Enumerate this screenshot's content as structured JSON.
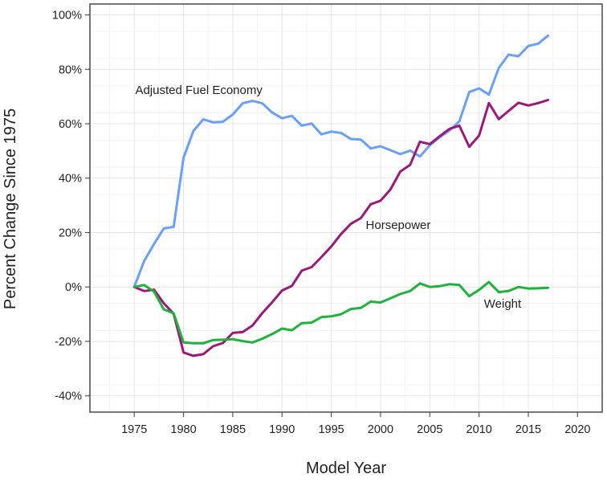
{
  "chart_data": {
    "type": "line",
    "xlabel": "Model Year",
    "ylabel": "Percent Change Since 1975",
    "xlim": [
      1970.5,
      2022.5
    ],
    "ylim": [
      -46,
      104
    ],
    "x_ticks": [
      1975,
      1980,
      1985,
      1990,
      1995,
      2000,
      2005,
      2010,
      2015,
      2020
    ],
    "x_tick_labels": [
      "1975",
      "1980",
      "1985",
      "1990",
      "1995",
      "2000",
      "2005",
      "2010",
      "2015",
      "2020"
    ],
    "y_ticks": [
      -40,
      -20,
      0,
      20,
      40,
      60,
      80,
      100
    ],
    "y_tick_labels": [
      "-40%",
      "-20%",
      "0%",
      "20%",
      "40%",
      "60%",
      "80%",
      "100%"
    ],
    "grid": true,
    "series": [
      {
        "name": "Adjusted Fuel Economy",
        "color": "#6a9eff",
        "x": [
          1975,
          1976,
          1977,
          1978,
          1979,
          1980,
          1981,
          1982,
          1983,
          1984,
          1985,
          1986,
          1987,
          1988,
          1989,
          1990,
          1991,
          1992,
          1993,
          1994,
          1995,
          1996,
          1997,
          1998,
          1999,
          2000,
          2001,
          2002,
          2003,
          2004,
          2005,
          2006,
          2007,
          2008,
          2009,
          2010,
          2011,
          2012,
          2013,
          2014,
          2015,
          2016,
          2017
        ],
        "values": [
          0,
          9.5,
          15.8,
          21.5,
          22.1,
          47.5,
          57.3,
          61.6,
          60.5,
          60.7,
          63.4,
          67.5,
          68.4,
          67.5,
          64.1,
          62,
          62.9,
          59.3,
          60.1,
          56.1,
          57.1,
          56.6,
          54.4,
          54.2,
          50.9,
          51.7,
          50.3,
          48.8,
          50.1,
          48,
          52.1,
          55,
          57.5,
          60.9,
          71.6,
          73,
          70.7,
          80.5,
          85.4,
          84.8,
          88.6,
          89.4,
          92.4
        ],
        "label_anchor": [
          1975.1,
          70.9
        ]
      },
      {
        "name": "Horsepower",
        "color": "#9c1879",
        "x": [
          1975,
          1976,
          1977,
          1978,
          1979,
          1980,
          1981,
          1982,
          1983,
          1984,
          1985,
          1986,
          1987,
          1988,
          1989,
          1990,
          1991,
          1992,
          1993,
          1994,
          1995,
          1996,
          1997,
          1998,
          1999,
          2000,
          2001,
          2002,
          2003,
          2004,
          2005,
          2006,
          2007,
          2008,
          2009,
          2010,
          2011,
          2012,
          2013,
          2014,
          2015,
          2016,
          2017
        ],
        "values": [
          0,
          -1.5,
          -1,
          -6,
          -9.9,
          -24.1,
          -25.3,
          -24.7,
          -21.8,
          -20.6,
          -16.9,
          -16.6,
          -14.2,
          -9.6,
          -5.6,
          -1.3,
          0.4,
          6,
          7.3,
          11,
          14.9,
          19.5,
          23.2,
          25.3,
          30.4,
          31.7,
          35.8,
          42.4,
          44.9,
          53.4,
          52.5,
          55.4,
          58.1,
          59.3,
          51.5,
          55.6,
          67.6,
          61.7,
          64.7,
          67.7,
          66.7,
          67.6,
          68.7
        ],
        "label_anchor": [
          1998.5,
          21.3
        ]
      },
      {
        "name": "Weight",
        "color": "#1fb23c",
        "x": [
          1975,
          1976,
          1977,
          1978,
          1979,
          1980,
          1981,
          1982,
          1983,
          1984,
          1985,
          1986,
          1987,
          1988,
          1989,
          1990,
          1991,
          1992,
          1993,
          1994,
          1995,
          1996,
          1997,
          1998,
          1999,
          2000,
          2001,
          2002,
          2003,
          2004,
          2005,
          2006,
          2007,
          2008,
          2009,
          2010,
          2011,
          2012,
          2013,
          2014,
          2015,
          2016,
          2017
        ],
        "values": [
          0,
          0.7,
          -1.7,
          -8.2,
          -9.7,
          -20.4,
          -20.7,
          -20.7,
          -19.5,
          -19.4,
          -19.2,
          -19.9,
          -20.4,
          -19,
          -17.3,
          -15.3,
          -15.9,
          -13.3,
          -13.1,
          -11.1,
          -10.8,
          -10,
          -8.1,
          -7.7,
          -5.4,
          -5.7,
          -4.2,
          -2.6,
          -1.5,
          1.3,
          0,
          0.3,
          1,
          0.7,
          -3.4,
          -1.1,
          1.8,
          -1.9,
          -1.5,
          0,
          -0.6,
          -0.5,
          -0.3
        ],
        "label_anchor": [
          2010.5,
          -7.6
        ]
      }
    ]
  }
}
